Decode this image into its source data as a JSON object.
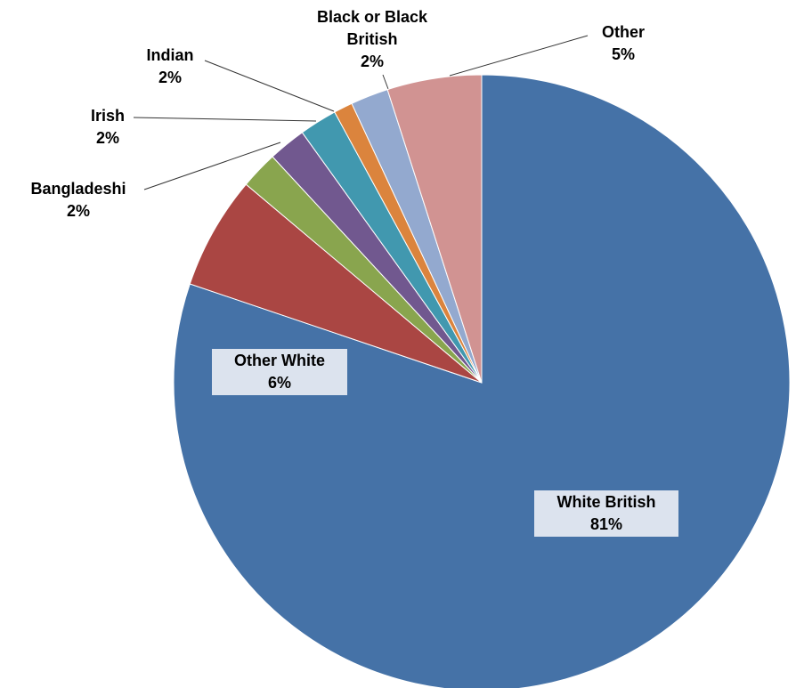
{
  "chart_data": {
    "type": "pie",
    "categories": [
      "White British",
      "Other White",
      "Bangladeshi",
      "Irish",
      "Indian",
      null,
      "Black or Black British",
      "Other"
    ],
    "values": [
      81,
      6,
      2,
      2,
      2,
      1,
      2,
      5
    ],
    "value_labels": [
      "81%",
      "6%",
      "2%",
      "2%",
      "2%",
      null,
      "2%",
      "5%"
    ],
    "colors": [
      "#4572a7",
      "#aa4643",
      "#89a54e",
      "#71588f",
      "#4198af",
      "#db843d",
      "#93a9cf",
      "#d19392"
    ]
  }
}
